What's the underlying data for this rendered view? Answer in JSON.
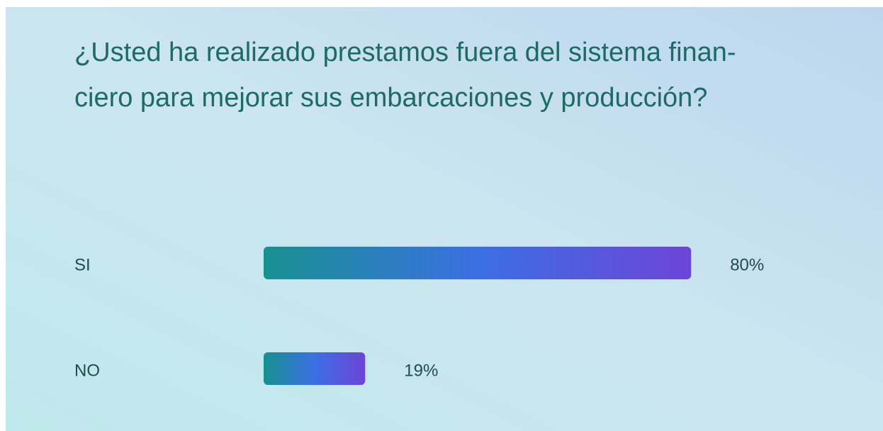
{
  "chart_data": {
    "type": "hbar",
    "title": [
      "¿Usted ha realizado prestamos fuera del sistema finan-",
      "ciero para mejorar sus embarcaciones y producción?"
    ],
    "categories": [
      "SI",
      "NO"
    ],
    "values": [
      80,
      19
    ],
    "value_labels": [
      "80%",
      "19%"
    ],
    "color": [
      "#17908f",
      "#3b6fe3",
      "#6d45d6"
    ],
    "xlim": [
      0,
      100
    ]
  }
}
